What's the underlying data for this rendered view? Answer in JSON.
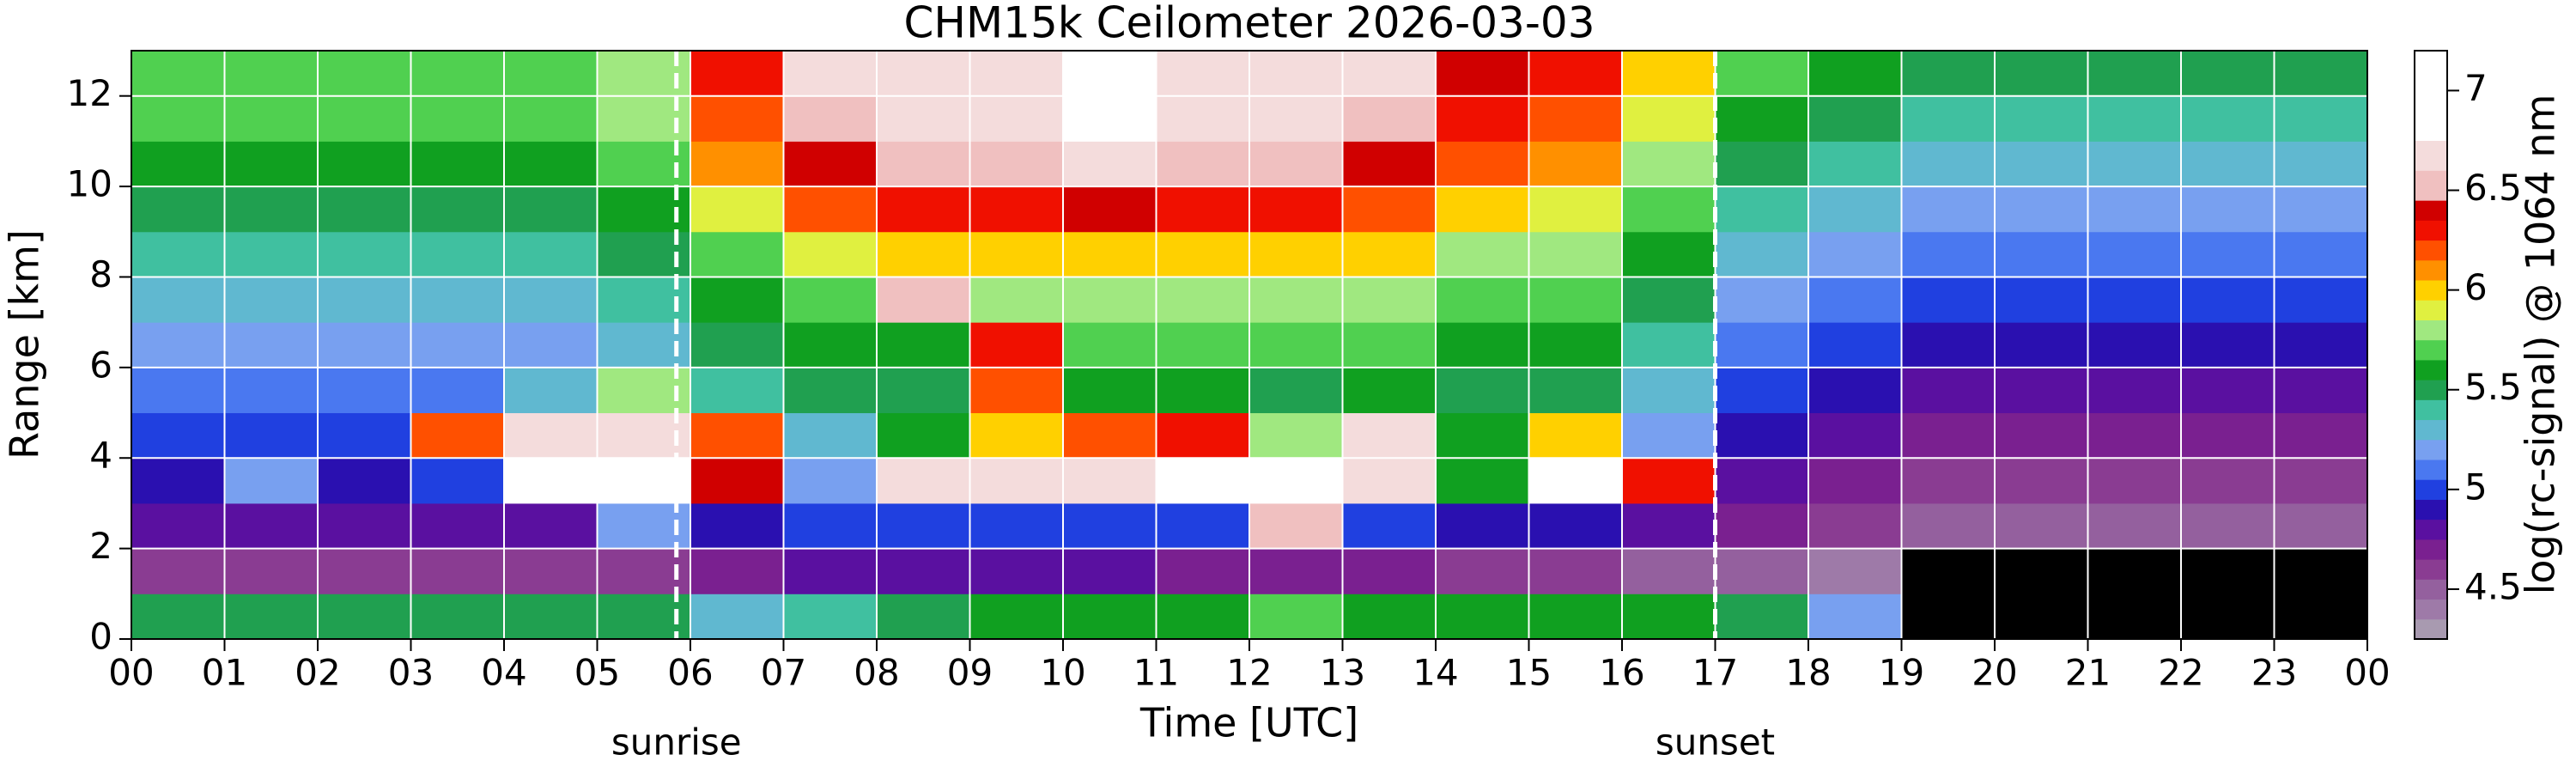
{
  "chart_data": {
    "type": "heatmap",
    "title": "CHM15k Ceilometer 2026-03-03",
    "xlabel": "Time [UTC]",
    "ylabel": "Range [km]",
    "x": [
      0,
      1,
      2,
      3,
      4,
      5,
      6,
      7,
      8,
      9,
      10,
      11,
      12,
      13,
      14,
      15,
      16,
      17,
      18,
      19,
      20,
      21,
      22,
      23,
      24
    ],
    "y": [
      0,
      1,
      2,
      3,
      4,
      5,
      6,
      7,
      8,
      9,
      10,
      11,
      12,
      13
    ],
    "z": [
      [
        5.5,
        5.5,
        5.5,
        5.5,
        5.5,
        5.5,
        5.3,
        5.4,
        5.5,
        5.6,
        5.6,
        5.6,
        5.7,
        5.6,
        5.6,
        5.6,
        5.6,
        5.5,
        5.2,
        null,
        null,
        null,
        null,
        null
      ],
      [
        4.6,
        4.6,
        4.6,
        4.6,
        4.6,
        4.6,
        4.7,
        4.8,
        4.8,
        4.8,
        4.8,
        4.7,
        4.7,
        4.7,
        4.6,
        4.6,
        4.5,
        4.5,
        4.4,
        null,
        null,
        null,
        null,
        null
      ],
      [
        4.8,
        4.8,
        4.8,
        4.8,
        4.8,
        5.2,
        4.9,
        5.0,
        5.0,
        5.0,
        5.0,
        5.0,
        6.5,
        5.0,
        4.9,
        4.9,
        4.8,
        4.7,
        4.6,
        4.5,
        4.5,
        4.5,
        4.5,
        4.5
      ],
      [
        4.9,
        5.2,
        4.9,
        5.0,
        6.8,
        6.8,
        6.4,
        5.2,
        6.6,
        6.7,
        6.7,
        6.9,
        6.8,
        6.6,
        5.6,
        6.8,
        6.3,
        4.8,
        4.7,
        4.6,
        4.6,
        4.6,
        4.6,
        4.6
      ],
      [
        5.0,
        5.0,
        5.0,
        6.2,
        6.6,
        6.6,
        6.2,
        5.3,
        5.6,
        6.0,
        6.2,
        6.3,
        5.8,
        6.6,
        5.6,
        6.0,
        5.2,
        4.9,
        4.8,
        4.7,
        4.7,
        4.7,
        4.7,
        4.7
      ],
      [
        5.1,
        5.1,
        5.1,
        5.1,
        5.3,
        5.8,
        5.4,
        5.5,
        5.5,
        6.2,
        5.6,
        5.6,
        5.5,
        5.6,
        5.5,
        5.5,
        5.3,
        5.0,
        4.9,
        4.8,
        4.8,
        4.8,
        4.8,
        4.8
      ],
      [
        5.2,
        5.2,
        5.2,
        5.2,
        5.2,
        5.3,
        5.5,
        5.6,
        5.6,
        6.3,
        5.7,
        5.7,
        5.7,
        5.7,
        5.6,
        5.6,
        5.4,
        5.1,
        5.0,
        4.9,
        4.9,
        4.9,
        4.9,
        4.9
      ],
      [
        5.3,
        5.3,
        5.3,
        5.3,
        5.3,
        5.4,
        5.6,
        5.7,
        6.5,
        5.8,
        5.8,
        5.8,
        5.8,
        5.8,
        5.7,
        5.7,
        5.5,
        5.2,
        5.1,
        5.0,
        5.0,
        5.0,
        5.0,
        5.0
      ],
      [
        5.4,
        5.4,
        5.4,
        5.4,
        5.4,
        5.5,
        5.7,
        5.9,
        6.0,
        6.0,
        6.0,
        6.0,
        6.0,
        6.0,
        5.8,
        5.8,
        5.6,
        5.3,
        5.2,
        5.1,
        5.1,
        5.1,
        5.1,
        5.1
      ],
      [
        5.5,
        5.5,
        5.5,
        5.5,
        5.5,
        5.6,
        5.9,
        6.2,
        6.3,
        6.3,
        6.4,
        6.3,
        6.3,
        6.2,
        6.0,
        5.9,
        5.7,
        5.4,
        5.3,
        5.2,
        5.2,
        5.2,
        5.2,
        5.2
      ],
      [
        5.6,
        5.6,
        5.6,
        5.6,
        5.6,
        5.7,
        6.1,
        6.4,
        6.5,
        6.5,
        6.6,
        6.5,
        6.5,
        6.4,
        6.2,
        6.1,
        5.8,
        5.5,
        5.4,
        5.3,
        5.3,
        5.3,
        5.3,
        5.3
      ],
      [
        5.7,
        5.7,
        5.7,
        5.7,
        5.7,
        5.8,
        6.2,
        6.5,
        6.6,
        6.6,
        6.8,
        6.6,
        6.6,
        6.5,
        6.3,
        6.2,
        5.9,
        5.6,
        5.5,
        5.4,
        5.4,
        5.4,
        5.4,
        5.4
      ],
      [
        5.7,
        5.7,
        5.7,
        5.7,
        5.7,
        5.8,
        6.3,
        6.6,
        6.7,
        6.7,
        6.9,
        6.7,
        6.7,
        6.6,
        6.4,
        6.3,
        6.0,
        5.7,
        5.6,
        5.5,
        5.5,
        5.5,
        5.5,
        5.5
      ]
    ],
    "xlim": [
      0,
      24
    ],
    "xticks": [
      {
        "value": 0,
        "label": "00"
      },
      {
        "value": 1,
        "label": "01"
      },
      {
        "value": 2,
        "label": "02"
      },
      {
        "value": 3,
        "label": "03"
      },
      {
        "value": 4,
        "label": "04"
      },
      {
        "value": 5,
        "label": "05"
      },
      {
        "value": 6,
        "label": "06"
      },
      {
        "value": 7,
        "label": "07"
      },
      {
        "value": 8,
        "label": "08"
      },
      {
        "value": 9,
        "label": "09"
      },
      {
        "value": 10,
        "label": "10"
      },
      {
        "value": 11,
        "label": "11"
      },
      {
        "value": 12,
        "label": "12"
      },
      {
        "value": 13,
        "label": "13"
      },
      {
        "value": 14,
        "label": "14"
      },
      {
        "value": 15,
        "label": "15"
      },
      {
        "value": 16,
        "label": "16"
      },
      {
        "value": 17,
        "label": "17"
      },
      {
        "value": 18,
        "label": "18"
      },
      {
        "value": 19,
        "label": "19"
      },
      {
        "value": 20,
        "label": "20"
      },
      {
        "value": 21,
        "label": "21"
      },
      {
        "value": 22,
        "label": "22"
      },
      {
        "value": 23,
        "label": "23"
      },
      {
        "value": 24,
        "label": "00"
      }
    ],
    "ylim": [
      0,
      13
    ],
    "yticks": [
      0,
      2,
      4,
      6,
      8,
      10,
      12
    ],
    "grid": true,
    "vlines": [
      {
        "x": 5.85,
        "label": "sunrise"
      },
      {
        "x": 17.0,
        "label": "sunset"
      }
    ],
    "colorbar": {
      "label": "log(rc-signal) @ 1064 nm",
      "lim": [
        4.25,
        7.2
      ],
      "ticks": [
        4.5,
        5,
        5.5,
        6,
        6.5,
        7
      ],
      "levels": [
        4.25,
        4.35,
        4.45,
        4.55,
        4.65,
        4.75,
        4.85,
        4.95,
        5.05,
        5.15,
        5.25,
        5.35,
        5.45,
        5.55,
        5.65,
        5.75,
        5.85,
        5.95,
        6.05,
        6.15,
        6.25,
        6.35,
        6.45,
        6.6,
        6.75,
        7.2
      ],
      "colors": [
        "#a89ab0",
        "#9e7aa8",
        "#94609e",
        "#8a3c92",
        "#7a2090",
        "#5a10a0",
        "#2a10b0",
        "#2040e0",
        "#4a78f0",
        "#78a0f0",
        "#60b8d0",
        "#40c0a0",
        "#20a050",
        "#10a020",
        "#50d050",
        "#a0e880",
        "#e0f040",
        "#ffd000",
        "#ff9000",
        "#ff5000",
        "#f01000",
        "#d00000",
        "#f0c0c0",
        "#f4dcdc",
        "#ffffff"
      ]
    }
  }
}
